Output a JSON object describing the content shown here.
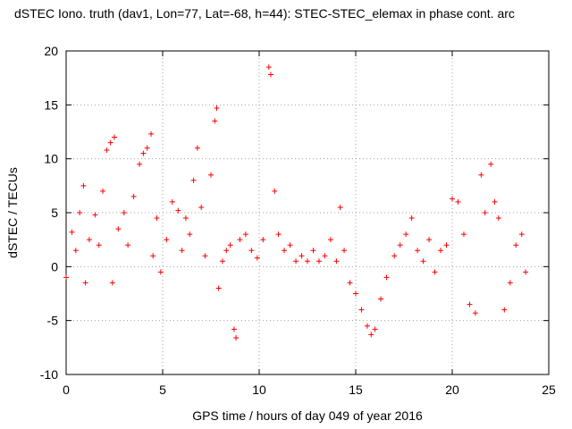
{
  "chart_data": {
    "type": "scatter",
    "title": "dSTEC Iono. truth (dav1, Lon=77, Lat=-68, h=44): STEC-STEC_elemax in phase cont. arc",
    "xlabel": "GPS time / hours of day 049 of year 2016",
    "ylabel": "dSTEC  / TECUs",
    "xlim": [
      0,
      25
    ],
    "ylim": [
      -10,
      20
    ],
    "xticks": [
      "0",
      "5",
      "10",
      "15",
      "20",
      "25"
    ],
    "yticks": [
      "-10",
      "-5",
      "0",
      "5",
      "10",
      "15",
      "20"
    ],
    "grid": true,
    "marker": "+",
    "color": "#ff0000",
    "series": [
      {
        "points": [
          [
            0.0,
            -1.0
          ],
          [
            0.3,
            3.2
          ],
          [
            0.5,
            1.5
          ],
          [
            0.7,
            5.0
          ],
          [
            0.9,
            7.5
          ],
          [
            1.0,
            -1.5
          ],
          [
            1.2,
            2.5
          ],
          [
            1.5,
            4.8
          ],
          [
            1.7,
            2.0
          ],
          [
            1.9,
            7.0
          ],
          [
            2.1,
            10.8
          ],
          [
            2.3,
            11.5
          ],
          [
            2.5,
            12.0
          ],
          [
            2.4,
            -1.5
          ],
          [
            2.7,
            3.5
          ],
          [
            3.0,
            5.0
          ],
          [
            3.2,
            2.0
          ],
          [
            3.5,
            6.5
          ],
          [
            3.8,
            9.5
          ],
          [
            4.0,
            10.5
          ],
          [
            4.2,
            11.0
          ],
          [
            4.4,
            12.3
          ],
          [
            4.5,
            1.0
          ],
          [
            4.7,
            4.5
          ],
          [
            4.9,
            -0.5
          ],
          [
            5.2,
            2.5
          ],
          [
            5.5,
            6.0
          ],
          [
            5.8,
            5.2
          ],
          [
            6.0,
            1.5
          ],
          [
            6.2,
            4.5
          ],
          [
            6.4,
            3.0
          ],
          [
            6.6,
            8.0
          ],
          [
            6.8,
            11.0
          ],
          [
            7.0,
            5.5
          ],
          [
            7.2,
            1.0
          ],
          [
            7.5,
            8.5
          ],
          [
            7.7,
            13.5
          ],
          [
            7.8,
            14.7
          ],
          [
            7.9,
            -2.0
          ],
          [
            8.1,
            0.5
          ],
          [
            8.3,
            1.5
          ],
          [
            8.5,
            2.0
          ],
          [
            8.7,
            -5.8
          ],
          [
            8.8,
            -6.6
          ],
          [
            9.0,
            2.5
          ],
          [
            9.3,
            3.0
          ],
          [
            9.6,
            1.5
          ],
          [
            9.9,
            0.8
          ],
          [
            10.2,
            2.5
          ],
          [
            10.5,
            18.5
          ],
          [
            10.6,
            17.8
          ],
          [
            10.8,
            7.0
          ],
          [
            11.0,
            3.0
          ],
          [
            11.3,
            1.5
          ],
          [
            11.6,
            2.0
          ],
          [
            11.9,
            0.5
          ],
          [
            12.2,
            1.0
          ],
          [
            12.5,
            0.5
          ],
          [
            12.8,
            1.5
          ],
          [
            13.1,
            0.5
          ],
          [
            13.4,
            1.0
          ],
          [
            13.7,
            2.5
          ],
          [
            14.0,
            0.5
          ],
          [
            14.2,
            5.5
          ],
          [
            14.4,
            1.5
          ],
          [
            14.7,
            -1.5
          ],
          [
            15.0,
            -2.5
          ],
          [
            15.3,
            -4.0
          ],
          [
            15.6,
            -5.5
          ],
          [
            15.8,
            -6.3
          ],
          [
            16.0,
            -5.8
          ],
          [
            16.3,
            -3.0
          ],
          [
            16.6,
            -1.0
          ],
          [
            17.0,
            1.0
          ],
          [
            17.3,
            2.0
          ],
          [
            17.6,
            3.0
          ],
          [
            17.9,
            4.5
          ],
          [
            18.2,
            1.5
          ],
          [
            18.5,
            0.5
          ],
          [
            18.8,
            2.5
          ],
          [
            19.1,
            -0.5
          ],
          [
            19.4,
            1.5
          ],
          [
            19.7,
            2.0
          ],
          [
            20.0,
            6.3
          ],
          [
            20.3,
            6.0
          ],
          [
            20.6,
            3.0
          ],
          [
            20.9,
            -3.5
          ],
          [
            21.2,
            -4.3
          ],
          [
            21.5,
            8.5
          ],
          [
            21.7,
            5.0
          ],
          [
            22.0,
            9.5
          ],
          [
            22.2,
            6.0
          ],
          [
            22.4,
            4.5
          ],
          [
            22.7,
            -4.0
          ],
          [
            23.0,
            -1.5
          ],
          [
            23.3,
            2.0
          ],
          [
            23.6,
            3.0
          ],
          [
            23.8,
            -0.5
          ]
        ]
      }
    ]
  }
}
